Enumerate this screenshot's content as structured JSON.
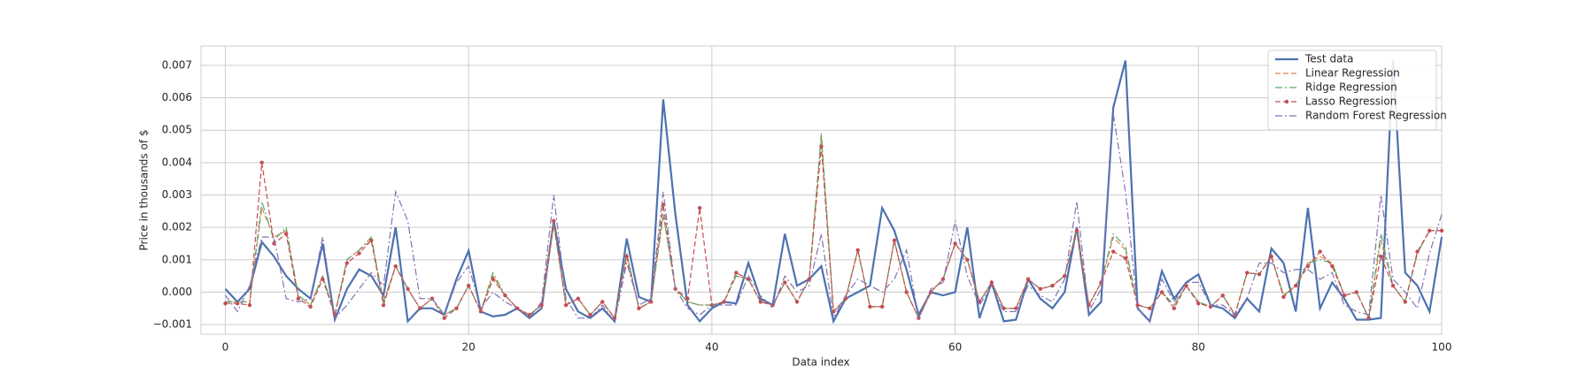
{
  "chart_data": {
    "type": "line",
    "xlabel": "Data index",
    "ylabel": "Price in thousands of $",
    "x": [
      0,
      1,
      2,
      3,
      4,
      5,
      6,
      7,
      8,
      9,
      10,
      11,
      12,
      13,
      14,
      15,
      16,
      17,
      18,
      19,
      20,
      21,
      22,
      23,
      24,
      25,
      26,
      27,
      28,
      29,
      30,
      31,
      32,
      33,
      34,
      35,
      36,
      37,
      38,
      39,
      40,
      41,
      42,
      43,
      44,
      45,
      46,
      47,
      48,
      49,
      50,
      51,
      52,
      53,
      54,
      55,
      56,
      57,
      58,
      59,
      60,
      61,
      62,
      63,
      64,
      65,
      66,
      67,
      68,
      69,
      70,
      71,
      72,
      73,
      74,
      75,
      76,
      77,
      78,
      79,
      80,
      81,
      82,
      83,
      84,
      85,
      86,
      87,
      88,
      89,
      90,
      91,
      92,
      93,
      94,
      95,
      96,
      97,
      98,
      99,
      100
    ],
    "xlim": [
      -2,
      100
    ],
    "xticks": [
      0,
      20,
      40,
      60,
      80,
      100
    ],
    "ylim": [
      -0.0013,
      0.0076
    ],
    "yticks": [
      {
        "value": -0.001,
        "label": "−0.001"
      },
      {
        "value": 0,
        "label": "0.000"
      },
      0.001,
      0.002,
      0.003,
      0.004,
      0.005,
      0.006,
      0.007
    ],
    "grid": true,
    "legend": "upper right",
    "series": [
      {
        "name": "Test data",
        "color": "#4c72b0",
        "style": "solid",
        "values": [
          0.0001,
          -0.0003,
          0.0001,
          0.00155,
          0.0011,
          0.0005,
          0.0001,
          -0.0002,
          0.0015,
          -0.00085,
          0.0001,
          0.0007,
          0.0005,
          -0.0001,
          0.002,
          -0.0009,
          -0.0005,
          -0.0005,
          -0.0007,
          0.0004,
          0.00128,
          -0.0006,
          -0.00075,
          -0.0007,
          -0.0005,
          -0.0008,
          -0.0005,
          0.0022,
          0.0001,
          -0.0006,
          -0.0008,
          -0.0005,
          -0.0009,
          0.00165,
          -0.00015,
          -0.0003,
          0.00595,
          0.0024,
          -0.0004,
          -0.0009,
          -0.0005,
          -0.0003,
          -0.00035,
          0.0009,
          -0.0002,
          -0.0004,
          0.0018,
          0.0002,
          0.0004,
          0.0008,
          -0.0009,
          -0.0002,
          0,
          0.0002,
          0.0026,
          0.0019,
          0.0007,
          -0.0007,
          0,
          -0.0001,
          0,
          0.002,
          -0.0008,
          0.0003,
          -0.0009,
          -0.00085,
          0.0004,
          -0.0002,
          -0.0005,
          0,
          0.002,
          -0.0007,
          -0.0003,
          0.0057,
          0.00715,
          -0.0005,
          -0.0009,
          0.00065,
          -0.0002,
          0.0003,
          0.00055,
          -0.0004,
          -0.0005,
          -0.0008,
          -0.0002,
          -0.0006,
          0.00135,
          0.0009,
          -0.0006,
          0.0026,
          -0.0005,
          0.0003,
          -0.0002,
          -0.00085,
          -0.00085,
          -0.0008,
          0.00715,
          0.0006,
          0.0002,
          -0.0006,
          0.0017
        ]
      },
      {
        "name": "Linear Regression",
        "color": "#dd8452",
        "style": "dashed",
        "values": [
          -0.0003,
          -0.0003,
          -0.0003,
          0.0026,
          0.0017,
          0.0019,
          -0.0001,
          -0.0004,
          0.0005,
          -0.0007,
          0.001,
          0.0013,
          0.0016,
          -0.0003,
          0.0008,
          0.0001,
          -0.0005,
          -0.0002,
          -0.0007,
          -0.0005,
          0.0002,
          -0.0006,
          0.0005,
          -0.0001,
          -0.0005,
          -0.0007,
          -0.0004,
          0.0021,
          -0.0004,
          -0.0002,
          -0.0007,
          -0.0003,
          -0.0008,
          0.0012,
          -0.0005,
          -0.0003,
          0.0024,
          0.0001,
          -0.0003,
          -0.0004,
          -0.0004,
          -0.0003,
          0.0005,
          0.0004,
          -0.0003,
          -0.0004,
          0.0003,
          -0.0003,
          0.0004,
          0.0048,
          -0.0006,
          -0.0002,
          0.0013,
          -0.00045,
          -0.00045,
          0.0016,
          0,
          -0.0008,
          0,
          0.0004,
          0.0015,
          0.001,
          -0.0003,
          0.0003,
          -0.0005,
          -0.0005,
          0.0004,
          0.0001,
          0.0002,
          0.0005,
          0.0019,
          -0.0004,
          0.0003,
          0.0017,
          0.0013,
          -0.0004,
          -0.0005,
          0,
          -0.0004,
          0.0002,
          -0.0003,
          -0.00045,
          -0.0001,
          -0.0007,
          0.0006,
          0.00055,
          0.0011,
          -0.0001,
          0.0002,
          0.0009,
          0.0011,
          0.0009,
          -0.0001,
          0,
          -0.0008,
          0.0016,
          0.0002,
          -0.0003,
          0.0012,
          0.0019,
          0.0019
        ]
      },
      {
        "name": "Ridge Regression",
        "color": "#55a868",
        "style": "dashdot",
        "values": [
          -0.0003,
          -0.0003,
          -0.0003,
          0.0028,
          0.0016,
          0.002,
          -0.0001,
          -0.0004,
          0.0005,
          -0.0007,
          0.001,
          0.0013,
          0.0017,
          -0.0003,
          0.0008,
          0.0001,
          -0.0005,
          -0.0002,
          -0.0007,
          -0.0005,
          0.0002,
          -0.0006,
          0.0006,
          -0.0001,
          -0.0005,
          -0.0007,
          -0.0004,
          0.0021,
          -0.0004,
          -0.0002,
          -0.0007,
          -0.0003,
          -0.0008,
          0.0012,
          -0.0005,
          -0.0003,
          0.0024,
          0.0001,
          -0.0003,
          -0.0004,
          -0.0004,
          -0.0003,
          0.0005,
          0.0004,
          -0.0003,
          -0.0004,
          0.0003,
          -0.0003,
          0.0004,
          0.0049,
          -0.0006,
          -0.0002,
          0.0013,
          -0.00045,
          -0.00045,
          0.0016,
          0,
          -0.0008,
          0,
          0.0004,
          0.0015,
          0.001,
          -0.0003,
          0.0003,
          -0.0005,
          -0.0005,
          0.0004,
          0.0001,
          0.0002,
          0.0005,
          0.0019,
          -0.0004,
          0.0003,
          0.0018,
          0.0014,
          -0.0004,
          -0.0005,
          0,
          -0.0004,
          0.0002,
          -0.0003,
          -0.00045,
          -0.0001,
          -0.0007,
          0.0006,
          0.00055,
          0.0011,
          -0.0001,
          0.0002,
          0.0009,
          0.001,
          0.0009,
          -0.0001,
          0,
          -0.0008,
          0.0018,
          0.0002,
          -0.0003,
          0.0012,
          0.0019,
          0.0019
        ]
      },
      {
        "name": "Lasso Regression",
        "color": "#c44e52",
        "style": "dashed",
        "markers": true,
        "values": [
          -0.00035,
          -0.00035,
          -0.0004,
          0.004,
          0.0015,
          0.0018,
          -0.0002,
          -0.00045,
          0.0004,
          -0.0007,
          0.0009,
          0.0012,
          0.0016,
          -0.0004,
          0.0008,
          0.0001,
          -0.0005,
          -0.0002,
          -0.0008,
          -0.0005,
          0.0002,
          -0.0006,
          0.0004,
          -0.0001,
          -0.0005,
          -0.0007,
          -0.0004,
          0.0022,
          -0.0004,
          -0.0002,
          -0.0007,
          -0.0003,
          -0.0008,
          0.0011,
          -0.0005,
          -0.0003,
          0.0027,
          0.0001,
          -0.0002,
          0.0026,
          -0.0004,
          -0.0003,
          0.0006,
          0.0004,
          -0.0003,
          -0.0004,
          0.0003,
          -0.0003,
          0.0004,
          0.0045,
          -0.0006,
          -0.0002,
          0.0013,
          -0.00045,
          -0.00045,
          0.0016,
          0,
          -0.0008,
          0,
          0.0004,
          0.0015,
          0.001,
          -0.0003,
          0.0003,
          -0.0005,
          -0.0005,
          0.0004,
          0.0001,
          0.0002,
          0.0005,
          0.0019,
          -0.0004,
          0.0003,
          0.00125,
          0.00105,
          -0.0004,
          -0.0005,
          0,
          -0.0005,
          0.0002,
          -0.00035,
          -0.00045,
          -0.0001,
          -0.0007,
          0.0006,
          0.00055,
          0.0011,
          -0.00015,
          0.0002,
          0.0008,
          0.00125,
          0.0008,
          -0.0001,
          0,
          -0.0008,
          0.0011,
          0.0002,
          -0.0003,
          0.00125,
          0.0019,
          0.0019
        ]
      },
      {
        "name": "Random Forest Regression",
        "color": "#8172b3",
        "style": "dashdot",
        "values": [
          -0.0001,
          -0.0006,
          0.0002,
          0.0017,
          0.0017,
          -0.0002,
          -0.0003,
          -0.0002,
          0.0017,
          -0.0008,
          -0.0004,
          0.0001,
          0.0006,
          0.0002,
          0.0031,
          0.0022,
          -0.0002,
          -0.0002,
          -0.0007,
          0.0003,
          0.0008,
          -0.0005,
          0,
          -0.0003,
          -0.0005,
          -0.0008,
          -0.0003,
          0.003,
          -0.0002,
          -0.0008,
          -0.0008,
          -0.0004,
          -0.0009,
          0.0009,
          -0.0004,
          -0.0002,
          0.0031,
          0.0001,
          -0.0005,
          -0.0007,
          -0.0004,
          -0.0004,
          -0.0004,
          0.0005,
          -0.0001,
          -0.0005,
          0.0005,
          0,
          0.0002,
          0.0018,
          -0.0008,
          -0.0001,
          0.0004,
          0.0002,
          0,
          0.0004,
          0.0013,
          -0.0008,
          0.0001,
          0.0003,
          0.0022,
          0.0005,
          -0.0004,
          0.0002,
          -0.0006,
          -0.0006,
          0.0002,
          -0.0001,
          -0.0003,
          0.0004,
          0.0028,
          -0.0006,
          0.0001,
          0.0055,
          0.0031,
          -0.0005,
          -0.0009,
          0.0004,
          -0.0003,
          0.0003,
          0.0003,
          -0.0004,
          -0.0004,
          -0.0007,
          -0.0002,
          0.0009,
          0.0009,
          0.0006,
          0.0007,
          0.0007,
          0.0004,
          0.0006,
          -0.0004,
          -0.0006,
          -0.0007,
          0.003,
          0.0004,
          0,
          -0.0005,
          0.0012,
          0.0024
        ]
      }
    ]
  }
}
